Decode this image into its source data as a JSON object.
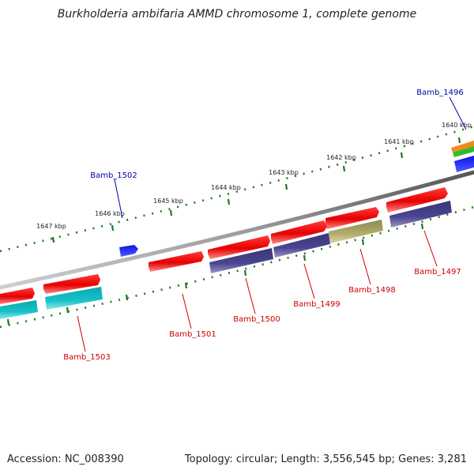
{
  "title": "Burkholderia ambifaria AMMD chromosome 1, complete genome",
  "footer": {
    "accession": "Accession: NC_008390",
    "topology": "Topology: circular; Length: 3,556,545 bp; Genes: 3,281"
  },
  "scale_labels": [
    "1640 kbp",
    "1641 kbp",
    "1642 kbp",
    "1643 kbp",
    "1644 kbp",
    "1645 kbp",
    "1646 kbp",
    "1647 kbp"
  ],
  "genes": [
    {
      "name": "Bamb_1496",
      "label_color": "#0000aa"
    },
    {
      "name": "Bamb_1497",
      "label_color": "#cc0000"
    },
    {
      "name": "Bamb_1498",
      "label_color": "#cc0000"
    },
    {
      "name": "Bamb_1499",
      "label_color": "#cc0000"
    },
    {
      "name": "Bamb_1500",
      "label_color": "#cc0000"
    },
    {
      "name": "Bamb_1501",
      "label_color": "#cc0000"
    },
    {
      "name": "Bamb_1502",
      "label_color": "#0000aa"
    },
    {
      "name": "Bamb_1503",
      "label_color": "#cc0000"
    }
  ],
  "colors": {
    "cds_red": "#ee1111",
    "category_purple": "#4b4590",
    "category_olive": "#b3ad6a",
    "category_cyan": "#18c2c8",
    "reverse_blue": "#0a14e6",
    "backbone": "#7a7a7a",
    "tick_green": "#1e7a1e"
  }
}
